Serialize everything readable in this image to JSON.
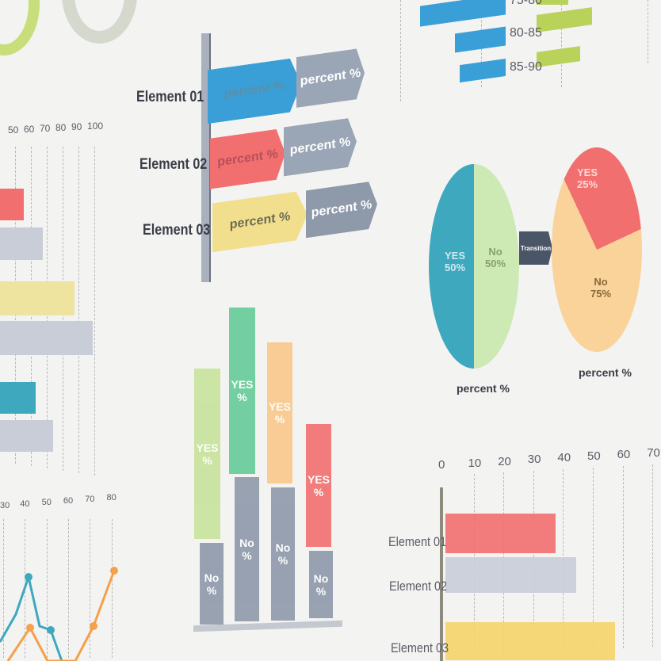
{
  "colors": {
    "blue": "#3a9fd6",
    "green": "#b9d25a",
    "teal": "#3ea8bf",
    "red": "#f26f6f",
    "gray": "#aab1bd",
    "yellow": "#f2df8e",
    "orange": "#f9c88a",
    "lightgreen": "#cde9b4",
    "mint": "#66cc99",
    "dark": "#4a5568"
  },
  "chart_data": [
    {
      "type": "bar",
      "orientation": "horizontal",
      "categories": [
        "75-80",
        "80-85",
        "85-90"
      ],
      "series": [
        {
          "color": "#3a9fd6"
        },
        {
          "color": "#b9d25a"
        }
      ]
    },
    {
      "type": "bar",
      "orientation": "horizontal",
      "categories": [
        "Element 01",
        "Element 02",
        "Element 03"
      ],
      "segments": [
        "percent %",
        "percent %"
      ]
    },
    {
      "type": "bar",
      "orientation": "horizontal",
      "x_ticks": [
        "50",
        "60",
        "70",
        "80",
        "90",
        "100"
      ],
      "grid": true
    },
    {
      "type": "line",
      "x_ticks": [
        "30",
        "40",
        "50",
        "60",
        "70",
        "80"
      ]
    },
    {
      "type": "bar",
      "stacked": true,
      "segments": [
        {
          "top": "YES %",
          "bottom": "No %"
        },
        {
          "top": "YES %",
          "bottom": "No %"
        },
        {
          "top": "YES %",
          "bottom": "No %"
        },
        {
          "top": "YES %",
          "bottom": "No %"
        }
      ]
    },
    {
      "type": "pie",
      "slices": [
        {
          "label": "YES",
          "value": 50,
          "text": "50%"
        },
        {
          "label": "No",
          "value": 50,
          "text": "50%"
        }
      ],
      "caption": "percent %"
    },
    {
      "type": "pie",
      "slices": [
        {
          "label": "YES",
          "value": 25,
          "text": "25%"
        },
        {
          "label": "No",
          "value": 75,
          "text": "75%"
        }
      ],
      "caption": "percent %",
      "transition": "Transition"
    },
    {
      "type": "bar",
      "orientation": "horizontal",
      "categories": [
        "Element 01",
        "Element 02",
        "Element 03"
      ],
      "values": [
        37,
        44,
        57
      ],
      "x_ticks": [
        "0",
        "10",
        "20",
        "30",
        "40",
        "50",
        "60",
        "70"
      ],
      "xlim": [
        0,
        70
      ],
      "grid": true
    }
  ]
}
